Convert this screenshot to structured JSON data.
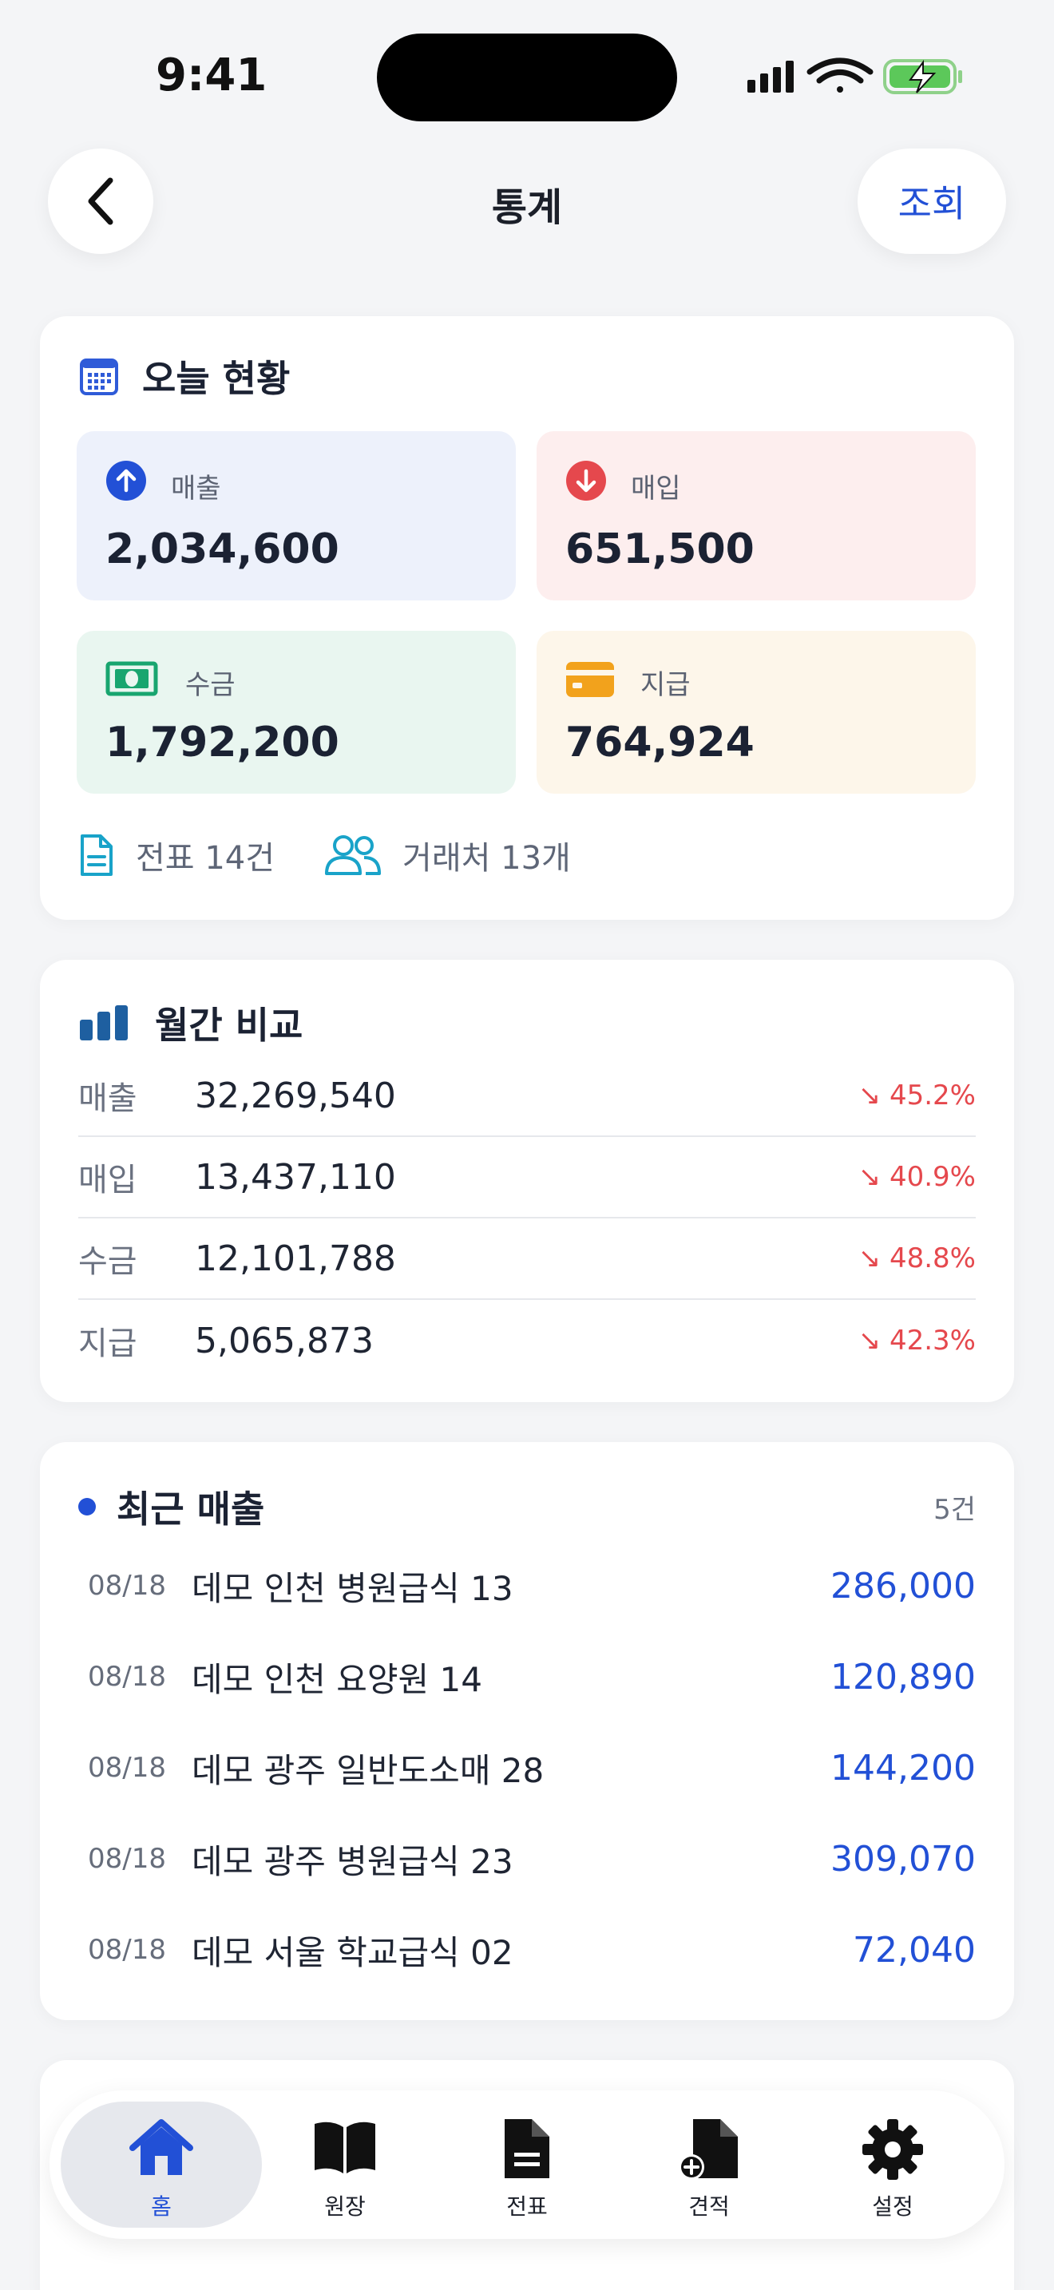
{
  "status_bar": {
    "time": "9:41"
  },
  "header": {
    "title": "통계",
    "query_label": "조회"
  },
  "today": {
    "title": "오늘 현황",
    "tiles": [
      {
        "label": "매출",
        "value": "2,034,600"
      },
      {
        "label": "매입",
        "value": "651,500"
      },
      {
        "label": "수금",
        "value": "1,792,200"
      },
      {
        "label": "지급",
        "value": "764,924"
      }
    ],
    "slips": "전표 14건",
    "clients": "거래처 13개"
  },
  "monthly": {
    "title": "월간 비교",
    "rows": [
      {
        "label": "매출",
        "value": "32,269,540",
        "change": "↘ 45.2%"
      },
      {
        "label": "매입",
        "value": "13,437,110",
        "change": "↘ 40.9%"
      },
      {
        "label": "수금",
        "value": "12,101,788",
        "change": "↘ 48.8%"
      },
      {
        "label": "지급",
        "value": "5,065,873",
        "change": "↘ 42.3%"
      }
    ]
  },
  "recent_sales": {
    "title": "최근 매출",
    "count": "5건",
    "rows": [
      {
        "date": "08/18",
        "name": "데모 인천 병원급식 13",
        "amount": "286,000"
      },
      {
        "date": "08/18",
        "name": "데모 인천 요양원 14",
        "amount": "120,890"
      },
      {
        "date": "08/18",
        "name": "데모 광주 일반도소매 28",
        "amount": "144,200"
      },
      {
        "date": "08/18",
        "name": "데모 광주 병원급식 23",
        "amount": "309,070"
      },
      {
        "date": "08/18",
        "name": "데모 서울 학교급식 02",
        "amount": "72,040"
      }
    ]
  },
  "tab_bar": {
    "items": [
      {
        "label": "홈",
        "icon": "home-icon",
        "active": true
      },
      {
        "label": "원장",
        "icon": "book-icon"
      },
      {
        "label": "전표",
        "icon": "document-icon"
      },
      {
        "label": "견적",
        "icon": "document-add-icon"
      },
      {
        "label": "설정",
        "icon": "gear-icon"
      }
    ]
  },
  "colors": {
    "accent": "#2250d6",
    "negative": "#e5484d",
    "sales_tile": "#edf1fb",
    "purchase_tile": "#fdeeee",
    "collection_tile": "#e9f6f0",
    "payment_tile": "#fdf6ea"
  }
}
